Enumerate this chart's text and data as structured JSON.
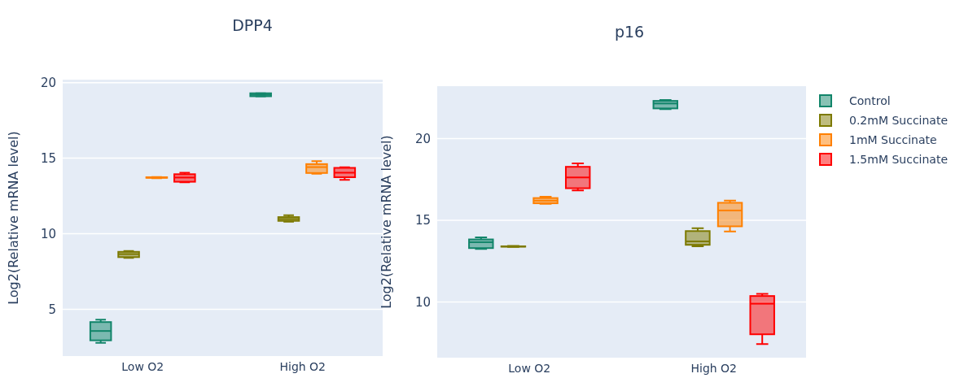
{
  "chart_data": [
    {
      "type": "box",
      "title": "DPP4",
      "ylabel": "Log2(Relative mRNA level)",
      "categories": [
        "Low O2",
        "High O2"
      ],
      "ylim": [
        1.9,
        20.2
      ],
      "yticks": [
        5,
        10,
        15,
        20
      ],
      "grid": "y",
      "legend": false,
      "series": [
        {
          "color": "#12856a",
          "boxes": [
            {
              "low": 2.77,
              "q1": 2.94,
              "median": 3.56,
              "q3": 4.15,
              "high": 4.31
            },
            {
              "low": 19.1,
              "q1": 19.1,
              "median": 19.2,
              "q3": 19.3,
              "high": 19.3
            }
          ]
        },
        {
          "color": "#7d7a00",
          "boxes": [
            {
              "low": 8.4,
              "q1": 8.45,
              "median": 8.65,
              "q3": 8.8,
              "high": 8.85
            },
            {
              "low": 10.8,
              "q1": 10.85,
              "median": 10.97,
              "q3": 11.1,
              "high": 11.22
            }
          ]
        },
        {
          "color": "#ff8000",
          "boxes": [
            {
              "low": 13.68,
              "q1": 13.7,
              "median": 13.72,
              "q3": 13.74,
              "high": 13.76
            },
            {
              "low": 13.97,
              "q1": 14.02,
              "median": 14.41,
              "q3": 14.61,
              "high": 14.8
            }
          ]
        },
        {
          "color": "#ff0000",
          "boxes": [
            {
              "low": 13.4,
              "q1": 13.44,
              "median": 13.72,
              "q3": 13.94,
              "high": 14.04
            },
            {
              "low": 13.56,
              "q1": 13.74,
              "median": 14.04,
              "q3": 14.36,
              "high": 14.4
            }
          ]
        }
      ]
    },
    {
      "type": "box",
      "title": "p16",
      "ylabel": "Log2(Relative mRNA level)",
      "categories": [
        "Low O2",
        "High O2"
      ],
      "ylim": [
        6.6,
        23.2
      ],
      "yticks": [
        10,
        15,
        20
      ],
      "grid": "y",
      "legend": "right",
      "series": [
        {
          "name": "Control",
          "color": "#12856a",
          "boxes": [
            {
              "low": 13.25,
              "q1": 13.3,
              "median": 13.66,
              "q3": 13.83,
              "high": 13.96
            },
            {
              "low": 21.8,
              "q1": 21.84,
              "median": 22.14,
              "q3": 22.3,
              "high": 22.36
            }
          ]
        },
        {
          "name": "0.2mM Succinate",
          "color": "#7d7a00",
          "boxes": [
            {
              "low": 13.37,
              "q1": 13.39,
              "median": 13.4,
              "q3": 13.41,
              "high": 13.43
            },
            {
              "low": 13.41,
              "q1": 13.5,
              "median": 13.71,
              "q3": 14.34,
              "high": 14.51
            }
          ]
        },
        {
          "name": "1mM Succinate",
          "color": "#ff8000",
          "boxes": [
            {
              "low": 16.0,
              "q1": 16.04,
              "median": 16.2,
              "q3": 16.36,
              "high": 16.44
            },
            {
              "low": 14.32,
              "q1": 14.63,
              "median": 15.6,
              "q3": 16.07,
              "high": 16.21
            }
          ]
        },
        {
          "name": "1.5mM Succinate",
          "color": "#ff0000",
          "boxes": [
            {
              "low": 16.83,
              "q1": 16.96,
              "median": 17.62,
              "q3": 18.27,
              "high": 18.48
            },
            {
              "low": 7.43,
              "q1": 8.03,
              "median": 9.9,
              "q3": 10.37,
              "high": 10.5
            }
          ]
        }
      ]
    }
  ]
}
